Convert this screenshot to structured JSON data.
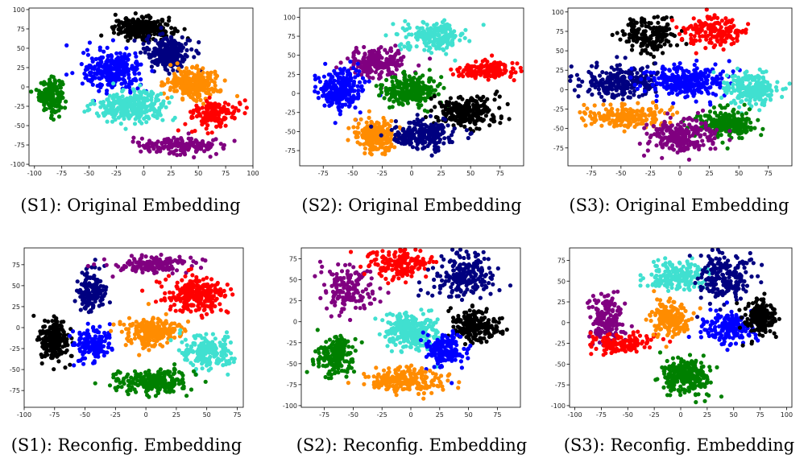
{
  "panels": [
    {
      "caption": "(S1): Original Embedding",
      "chart_data": {
        "type": "scatter",
        "xlim": [
          -105,
          100
        ],
        "ylim": [
          -102,
          102
        ],
        "xticks": [
          -100,
          -75,
          -50,
          -25,
          0,
          25,
          50,
          75,
          100
        ],
        "yticks": [
          -100,
          -75,
          -50,
          -25,
          0,
          25,
          50,
          75,
          100
        ],
        "grid": false,
        "clusters": [
          {
            "color": "#008000",
            "cx": -85,
            "cy": -10,
            "sx": 7,
            "sy": 14,
            "n": 180
          },
          {
            "color": "#000000",
            "cx": 0,
            "cy": 75,
            "sx": 18,
            "sy": 9,
            "n": 260
          },
          {
            "color": "#000080",
            "cx": 22,
            "cy": 45,
            "sx": 14,
            "sy": 15,
            "n": 240
          },
          {
            "color": "#0000ff",
            "cx": -28,
            "cy": 20,
            "sx": 18,
            "sy": 17,
            "n": 280
          },
          {
            "color": "#ff8c00",
            "cx": 45,
            "cy": 5,
            "sx": 16,
            "sy": 13,
            "n": 240
          },
          {
            "color": "#40e0d0",
            "cx": -10,
            "cy": -25,
            "sx": 22,
            "sy": 12,
            "n": 300
          },
          {
            "color": "#ff0000",
            "cx": 65,
            "cy": -35,
            "sx": 15,
            "sy": 12,
            "n": 140
          },
          {
            "color": "#800080",
            "cx": 35,
            "cy": -75,
            "sx": 25,
            "sy": 7,
            "n": 180
          }
        ]
      }
    },
    {
      "caption": "(S2): Original Embedding",
      "chart_data": {
        "type": "scatter",
        "xlim": [
          -95,
          95
        ],
        "ylim": [
          -95,
          112
        ],
        "xticks": [
          -75,
          -50,
          -25,
          0,
          25,
          50,
          75
        ],
        "yticks": [
          -75,
          -50,
          -25,
          0,
          25,
          50,
          75,
          100
        ],
        "grid": false,
        "clusters": [
          {
            "color": "#40e0d0",
            "cx": 20,
            "cy": 75,
            "sx": 18,
            "sy": 12,
            "n": 200
          },
          {
            "color": "#ff0000",
            "cx": 60,
            "cy": 30,
            "sx": 18,
            "sy": 8,
            "n": 160
          },
          {
            "color": "#800080",
            "cx": -30,
            "cy": 40,
            "sx": 16,
            "sy": 12,
            "n": 220
          },
          {
            "color": "#0000ff",
            "cx": -60,
            "cy": 5,
            "sx": 12,
            "sy": 18,
            "n": 240
          },
          {
            "color": "#008000",
            "cx": 0,
            "cy": 5,
            "sx": 16,
            "sy": 13,
            "n": 240
          },
          {
            "color": "#000000",
            "cx": 45,
            "cy": -25,
            "sx": 18,
            "sy": 14,
            "n": 260
          },
          {
            "color": "#ff8c00",
            "cx": -30,
            "cy": -55,
            "sx": 12,
            "sy": 15,
            "n": 220
          },
          {
            "color": "#000080",
            "cx": 10,
            "cy": -55,
            "sx": 18,
            "sy": 13,
            "n": 240
          }
        ]
      }
    },
    {
      "caption": "(S3): Original Embedding",
      "chart_data": {
        "type": "scatter",
        "xlim": [
          -95,
          95
        ],
        "ylim": [
          -98,
          105
        ],
        "xticks": [
          -75,
          -50,
          -25,
          0,
          25,
          50,
          75
        ],
        "yticks": [
          -75,
          -50,
          -25,
          0,
          25,
          50,
          75,
          100
        ],
        "grid": false,
        "clusters": [
          {
            "color": "#000000",
            "cx": -25,
            "cy": 70,
            "sx": 16,
            "sy": 15,
            "n": 180
          },
          {
            "color": "#ff0000",
            "cx": 30,
            "cy": 75,
            "sx": 18,
            "sy": 14,
            "n": 160
          },
          {
            "color": "#000080",
            "cx": -50,
            "cy": 10,
            "sx": 22,
            "sy": 13,
            "n": 260
          },
          {
            "color": "#0000ff",
            "cx": 5,
            "cy": 10,
            "sx": 22,
            "sy": 13,
            "n": 280
          },
          {
            "color": "#40e0d0",
            "cx": 60,
            "cy": 0,
            "sx": 16,
            "sy": 14,
            "n": 220
          },
          {
            "color": "#ff8c00",
            "cx": -45,
            "cy": -35,
            "sx": 22,
            "sy": 10,
            "n": 200
          },
          {
            "color": "#008000",
            "cx": 40,
            "cy": -45,
            "sx": 16,
            "sy": 12,
            "n": 240
          },
          {
            "color": "#800080",
            "cx": 0,
            "cy": -60,
            "sx": 20,
            "sy": 14,
            "n": 240
          }
        ]
      }
    },
    {
      "caption": "(S1): Reconfig. Embedding",
      "chart_data": {
        "type": "scatter",
        "xlim": [
          -100,
          80
        ],
        "ylim": [
          -95,
          95
        ],
        "xticks": [
          -100,
          -75,
          -50,
          -25,
          0,
          25,
          50,
          75
        ],
        "yticks": [
          -75,
          -50,
          -25,
          0,
          25,
          50,
          75
        ],
        "grid": false,
        "clusters": [
          {
            "color": "#000000",
            "cx": -75,
            "cy": -15,
            "sx": 8,
            "sy": 18,
            "n": 200
          },
          {
            "color": "#000080",
            "cx": -45,
            "cy": 45,
            "sx": 8,
            "sy": 18,
            "n": 160
          },
          {
            "color": "#0000ff",
            "cx": -45,
            "cy": -20,
            "sx": 10,
            "sy": 14,
            "n": 160
          },
          {
            "color": "#800080",
            "cx": 5,
            "cy": 75,
            "sx": 22,
            "sy": 6,
            "n": 160
          },
          {
            "color": "#ff0000",
            "cx": 40,
            "cy": 40,
            "sx": 18,
            "sy": 14,
            "n": 260
          },
          {
            "color": "#ff8c00",
            "cx": 5,
            "cy": -5,
            "sx": 16,
            "sy": 12,
            "n": 220
          },
          {
            "color": "#40e0d0",
            "cx": 50,
            "cy": -30,
            "sx": 14,
            "sy": 14,
            "n": 200
          },
          {
            "color": "#008000",
            "cx": 5,
            "cy": -65,
            "sx": 20,
            "sy": 10,
            "n": 240
          }
        ]
      }
    },
    {
      "caption": "(S2): Reconfig. Embedding",
      "chart_data": {
        "type": "scatter",
        "xlim": [
          -95,
          95
        ],
        "ylim": [
          -102,
          88
        ],
        "xticks": [
          -75,
          -50,
          -25,
          0,
          25,
          50,
          75
        ],
        "yticks": [
          -100,
          -75,
          -50,
          -25,
          0,
          25,
          50,
          75
        ],
        "grid": false,
        "clusters": [
          {
            "color": "#800080",
            "cx": -55,
            "cy": 40,
            "sx": 14,
            "sy": 18,
            "n": 160
          },
          {
            "color": "#ff0000",
            "cx": -10,
            "cy": 70,
            "sx": 18,
            "sy": 12,
            "n": 160
          },
          {
            "color": "#000080",
            "cx": 45,
            "cy": 55,
            "sx": 18,
            "sy": 18,
            "n": 200
          },
          {
            "color": "#40e0d0",
            "cx": 0,
            "cy": -10,
            "sx": 16,
            "sy": 14,
            "n": 260
          },
          {
            "color": "#000000",
            "cx": 55,
            "cy": -5,
            "sx": 14,
            "sy": 12,
            "n": 200
          },
          {
            "color": "#0000ff",
            "cx": 30,
            "cy": -35,
            "sx": 12,
            "sy": 14,
            "n": 160
          },
          {
            "color": "#008000",
            "cx": -65,
            "cy": -40,
            "sx": 10,
            "sy": 16,
            "n": 180
          },
          {
            "color": "#ff8c00",
            "cx": -5,
            "cy": -70,
            "sx": 22,
            "sy": 10,
            "n": 220
          }
        ]
      }
    },
    {
      "caption": "(S3): Reconfig. Embedding",
      "chart_data": {
        "type": "scatter",
        "xlim": [
          -105,
          105
        ],
        "ylim": [
          -102,
          90
        ],
        "xticks": [
          -100,
          -75,
          -50,
          -25,
          0,
          25,
          50,
          75,
          100
        ],
        "yticks": [
          -100,
          -75,
          -50,
          -25,
          0,
          25,
          50,
          75
        ],
        "grid": false,
        "clusters": [
          {
            "color": "#800080",
            "cx": -70,
            "cy": 5,
            "sx": 10,
            "sy": 22,
            "n": 160
          },
          {
            "color": "#ff0000",
            "cx": -55,
            "cy": -25,
            "sx": 20,
            "sy": 8,
            "n": 140
          },
          {
            "color": "#40e0d0",
            "cx": -5,
            "cy": 55,
            "sx": 18,
            "sy": 12,
            "n": 180
          },
          {
            "color": "#000080",
            "cx": 40,
            "cy": 55,
            "sx": 18,
            "sy": 18,
            "n": 200
          },
          {
            "color": "#ff8c00",
            "cx": -10,
            "cy": 5,
            "sx": 12,
            "sy": 14,
            "n": 180
          },
          {
            "color": "#0000ff",
            "cx": 45,
            "cy": -5,
            "sx": 16,
            "sy": 12,
            "n": 180
          },
          {
            "color": "#000000",
            "cx": 75,
            "cy": 5,
            "sx": 10,
            "sy": 14,
            "n": 180
          },
          {
            "color": "#008000",
            "cx": 5,
            "cy": -65,
            "sx": 16,
            "sy": 14,
            "n": 260
          }
        ]
      }
    }
  ]
}
